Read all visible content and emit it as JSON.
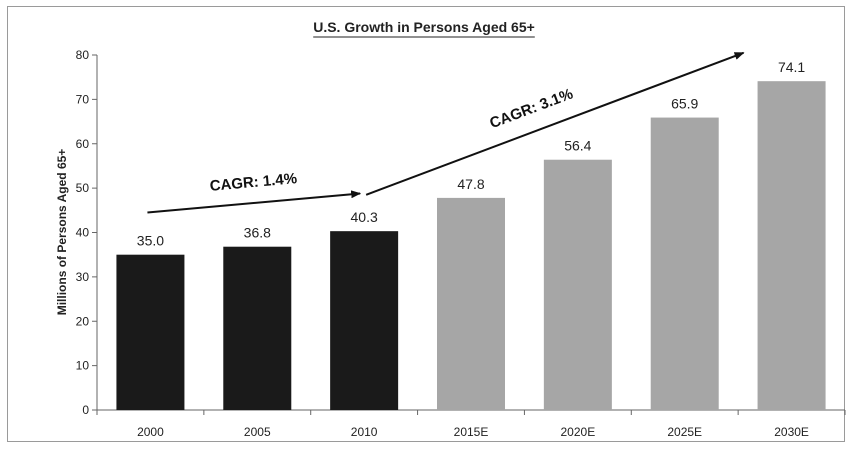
{
  "chart_data": {
    "type": "bar",
    "title": "U.S. Growth in Persons Aged 65+",
    "xlabel": "",
    "ylabel": "Millions of Persons Aged 65+",
    "ylim": [
      0,
      80
    ],
    "yticks": [
      0,
      10,
      20,
      30,
      40,
      50,
      60,
      70,
      80
    ],
    "categories": [
      "2000",
      "2005",
      "2010",
      "2015E",
      "2020E",
      "2025E",
      "2030E"
    ],
    "values": [
      35.0,
      36.8,
      40.3,
      47.8,
      56.4,
      65.9,
      74.1
    ],
    "value_labels": [
      "35.0",
      "36.8",
      "40.3",
      "47.8",
      "56.4",
      "65.9",
      "74.1"
    ],
    "bar_colors": [
      "#1a1a1a",
      "#1a1a1a",
      "#1a1a1a",
      "#a6a6a6",
      "#a6a6a6",
      "#a6a6a6",
      "#a6a6a6"
    ],
    "grid": false,
    "legend": "none",
    "annotations": [
      {
        "text": "CAGR: 1.4%",
        "from_category": "2000",
        "to_category": "2010"
      },
      {
        "text": "CAGR: 3.1%",
        "from_category": "2010",
        "to_category": "2030E"
      }
    ]
  }
}
